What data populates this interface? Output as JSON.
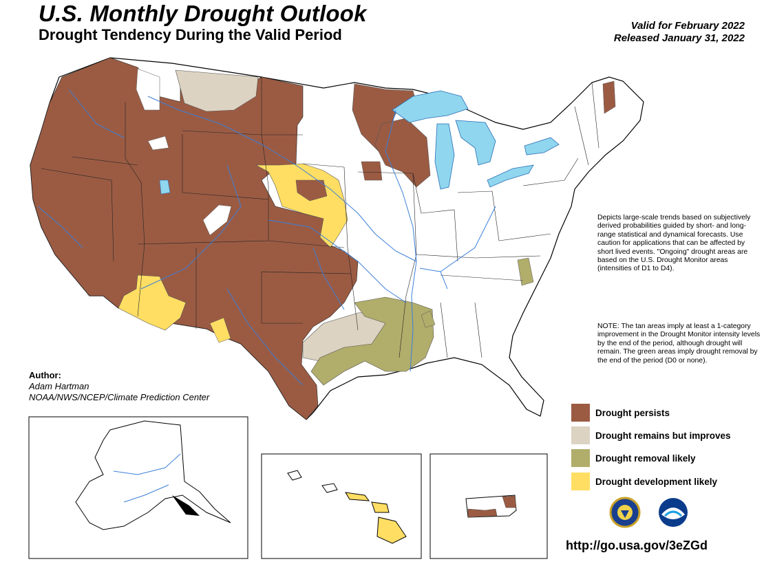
{
  "header": {
    "title": "U.S. Monthly Drought Outlook",
    "subtitle": "Drought Tendency During the Valid Period",
    "valid": "Valid for February 2022",
    "released": "Released January 31, 2022"
  },
  "author": {
    "label": "Author:",
    "name": "Adam Hartman",
    "org": "NOAA/NWS/NCEP/Climate Prediction Center"
  },
  "description": "Depicts large-scale trends based on subjectively derived probabilities guided by short- and long-range statistical and dynamical forecasts. Use caution for applications that can be affected by short lived events. \"Ongoing\" drought areas are based on the U.S. Drought Monitor areas (intensities of D1 to D4).",
  "note": "NOTE: The tan areas imply at least a 1-category improvement in the Drought Monitor intensity levels by the end of the period, although drought will remain. The green areas imply drought removal by the end of the period (D0 or none).",
  "legend": [
    {
      "label": "Drought persists",
      "color": "#9b5b43"
    },
    {
      "label": "Drought remains but improves",
      "color": "#ddd3c2"
    },
    {
      "label": "Drought removal likely",
      "color": "#b1ad6b"
    },
    {
      "label": "Drought development likely",
      "color": "#ffde63"
    }
  ],
  "colors": {
    "water": "#8fd6ee",
    "river": "#3b7fd9",
    "persists": "#9b5b43",
    "improves": "#ddd3c2",
    "removal": "#b1ad6b",
    "development": "#ffde63"
  },
  "url": "http://go.usa.gov/3eZGd"
}
